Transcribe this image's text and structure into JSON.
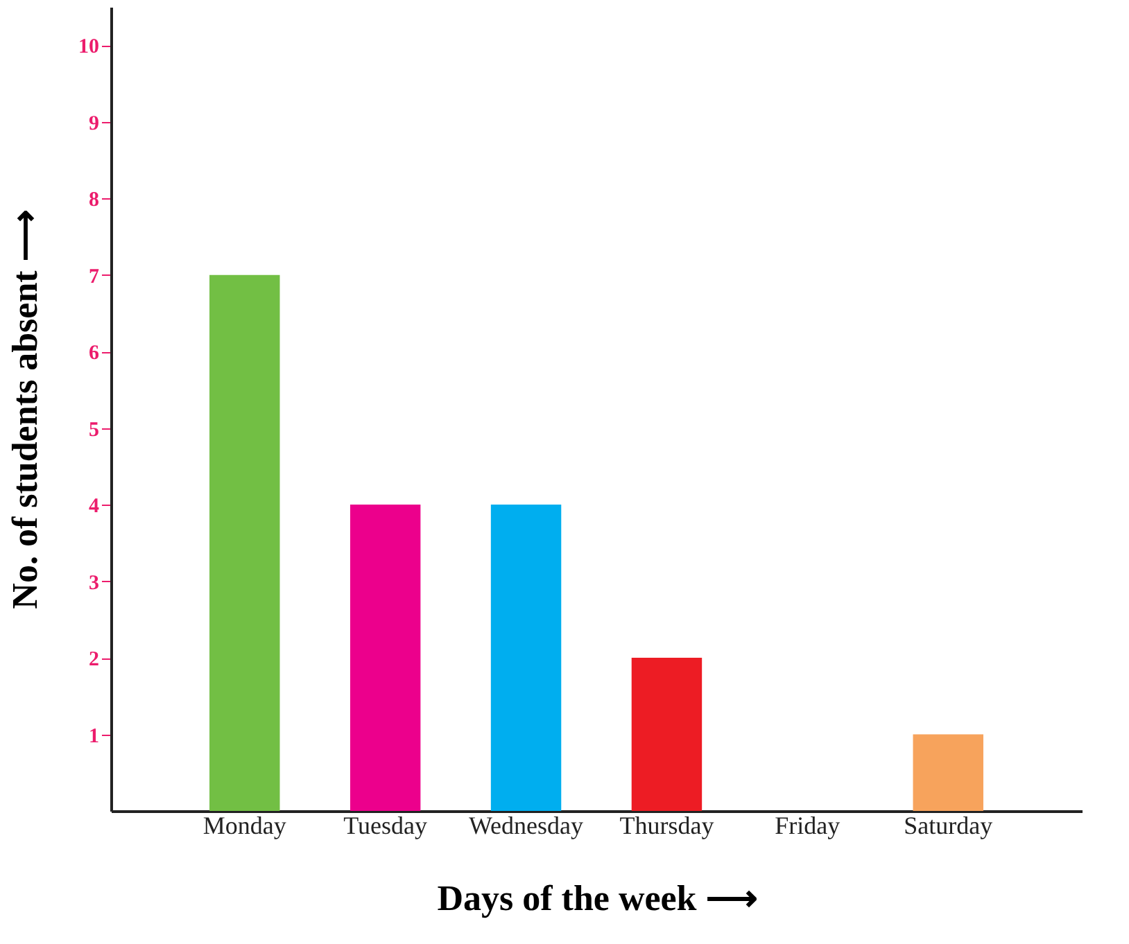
{
  "chart_data": {
    "type": "bar",
    "xlabel": "Days of the week ⟶",
    "ylabel": "No. of students absent ⟶",
    "categories": [
      "Monday",
      "Tuesday",
      "Wednesday",
      "Thursday",
      "Friday",
      "Saturday"
    ],
    "values": [
      7,
      4,
      4,
      2,
      0,
      1
    ],
    "colors": [
      "#72bf44",
      "#ec008c",
      "#00aeef",
      "#ed1c24",
      "#ffffff",
      "#f7a35c"
    ],
    "ylim": [
      0,
      10.5
    ],
    "yticks": [
      1,
      2,
      3,
      4,
      5,
      6,
      7,
      8,
      9,
      10
    ],
    "grid": false,
    "legend": false
  }
}
